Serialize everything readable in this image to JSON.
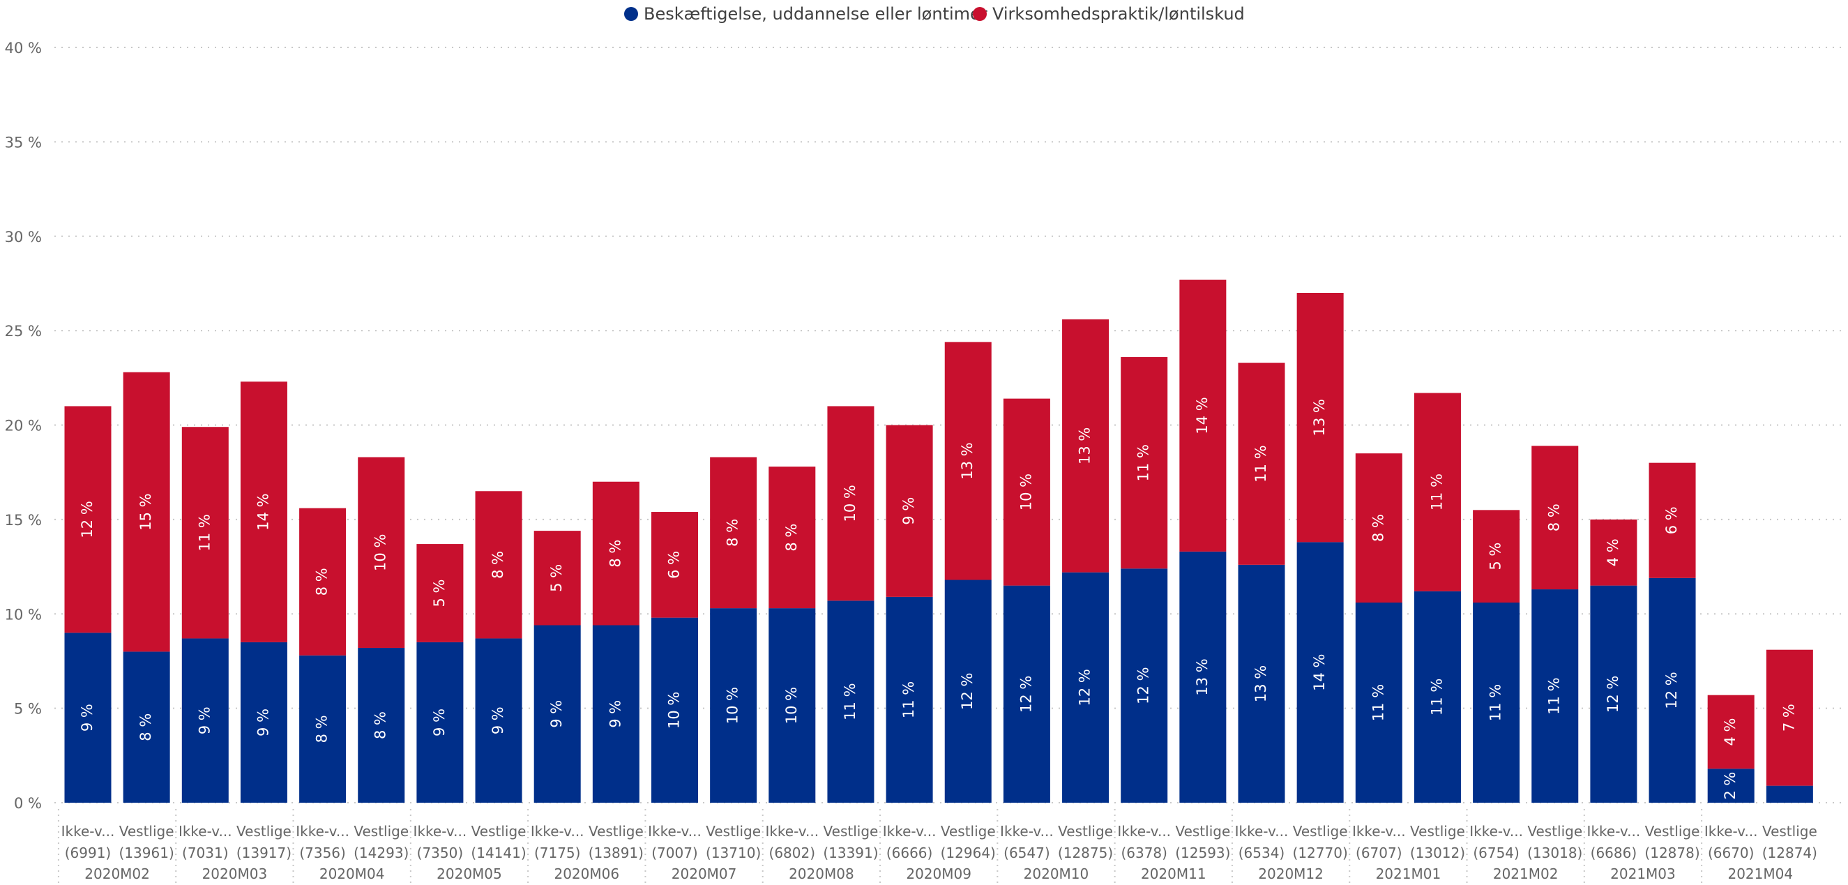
{
  "colors": {
    "series1": "#002F8A",
    "series2": "#C8102E",
    "grid": "#C8C8C8",
    "text": "#666666",
    "label": "#FFFFFF"
  },
  "chart_data": {
    "type": "bar",
    "stacked": true,
    "legend_position": "top-center",
    "grid": true,
    "ylim": [
      0,
      40
    ],
    "y_ticks": [
      "0 %",
      "5 %",
      "10 %",
      "15 %",
      "20 %",
      "25 %",
      "30 %",
      "35 %",
      "40 %"
    ],
    "legend": [
      {
        "name": "Beskæftigelse, uddannelse eller løntimer",
        "color": "#002F8A"
      },
      {
        "name": "Virksomhedspraktik/løntilskud",
        "color": "#C8102E"
      }
    ],
    "months": [
      "2020M02",
      "2020M03",
      "2020M04",
      "2020M05",
      "2020M06",
      "2020M07",
      "2020M08",
      "2020M09",
      "2020M10",
      "2020M11",
      "2020M12",
      "2021M01",
      "2021M02",
      "2021M03",
      "2021M04"
    ],
    "categories": [
      {
        "group": "Ikke-v...",
        "count": "(6991)"
      },
      {
        "group": "Vestlige",
        "count": "(13961)"
      },
      {
        "group": "Ikke-v...",
        "count": "(7031)"
      },
      {
        "group": "Vestlige",
        "count": "(13917)"
      },
      {
        "group": "Ikke-v...",
        "count": "(7356)"
      },
      {
        "group": "Vestlige",
        "count": "(14293)"
      },
      {
        "group": "Ikke-v...",
        "count": "(7350)"
      },
      {
        "group": "Vestlige",
        "count": "(14141)"
      },
      {
        "group": "Ikke-v...",
        "count": "(7175)"
      },
      {
        "group": "Vestlige",
        "count": "(13891)"
      },
      {
        "group": "Ikke-v...",
        "count": "(7007)"
      },
      {
        "group": "Vestlige",
        "count": "(13710)"
      },
      {
        "group": "Ikke-v...",
        "count": "(6802)"
      },
      {
        "group": "Vestlige",
        "count": "(13391)"
      },
      {
        "group": "Ikke-v...",
        "count": "(6666)"
      },
      {
        "group": "Vestlige",
        "count": "(12964)"
      },
      {
        "group": "Ikke-v...",
        "count": "(6547)"
      },
      {
        "group": "Vestlige",
        "count": "(12875)"
      },
      {
        "group": "Ikke-v...",
        "count": "(6378)"
      },
      {
        "group": "Vestlige",
        "count": "(12593)"
      },
      {
        "group": "Ikke-v...",
        "count": "(6534)"
      },
      {
        "group": "Vestlige",
        "count": "(12770)"
      },
      {
        "group": "Ikke-v...",
        "count": "(6707)"
      },
      {
        "group": "Vestlige",
        "count": "(13012)"
      },
      {
        "group": "Ikke-v...",
        "count": "(6754)"
      },
      {
        "group": "Vestlige",
        "count": "(13018)"
      },
      {
        "group": "Ikke-v...",
        "count": "(6686)"
      },
      {
        "group": "Vestlige",
        "count": "(12878)"
      },
      {
        "group": "Ikke-v...",
        "count": "(6670)"
      },
      {
        "group": "Vestlige",
        "count": "(12874)"
      }
    ],
    "series": [
      {
        "name": "Beskæftigelse, uddannelse eller løntimer",
        "values": [
          9.0,
          8.0,
          8.7,
          8.5,
          7.8,
          8.2,
          8.5,
          8.7,
          9.4,
          9.4,
          9.8,
          10.3,
          10.3,
          10.7,
          10.9,
          11.8,
          11.5,
          12.2,
          12.4,
          13.3,
          12.6,
          13.8,
          10.6,
          11.2,
          10.6,
          11.3,
          11.5,
          11.9,
          1.8,
          0.9
        ],
        "labels": [
          "9 %",
          "8 %",
          "9 %",
          "9 %",
          "8 %",
          "8 %",
          "9 %",
          "9 %",
          "9 %",
          "9 %",
          "10 %",
          "10 %",
          "10 %",
          "11 %",
          "11 %",
          "12 %",
          "12 %",
          "12 %",
          "12 %",
          "13 %",
          "13 %",
          "14 %",
          "11 %",
          "11 %",
          "11 %",
          "11 %",
          "12 %",
          "12 %",
          "2 %",
          ""
        ]
      },
      {
        "name": "Virksomhedspraktik/løntilskud",
        "values": [
          12.0,
          14.8,
          11.2,
          13.8,
          7.8,
          10.1,
          5.2,
          7.8,
          5.0,
          7.6,
          5.6,
          8.0,
          7.5,
          10.3,
          9.1,
          12.6,
          9.9,
          13.4,
          11.2,
          14.4,
          10.7,
          13.2,
          7.9,
          10.5,
          4.9,
          7.6,
          3.5,
          6.1,
          3.9,
          7.2
        ],
        "labels": [
          "12 %",
          "15 %",
          "11 %",
          "14 %",
          "8 %",
          "10 %",
          "5 %",
          "8 %",
          "5 %",
          "8 %",
          "6 %",
          "8 %",
          "8 %",
          "10 %",
          "9 %",
          "13 %",
          "10 %",
          "13 %",
          "11 %",
          "14 %",
          "11 %",
          "13 %",
          "8 %",
          "11 %",
          "5 %",
          "8 %",
          "4 %",
          "6 %",
          "4 %",
          "7 %"
        ]
      }
    ]
  }
}
